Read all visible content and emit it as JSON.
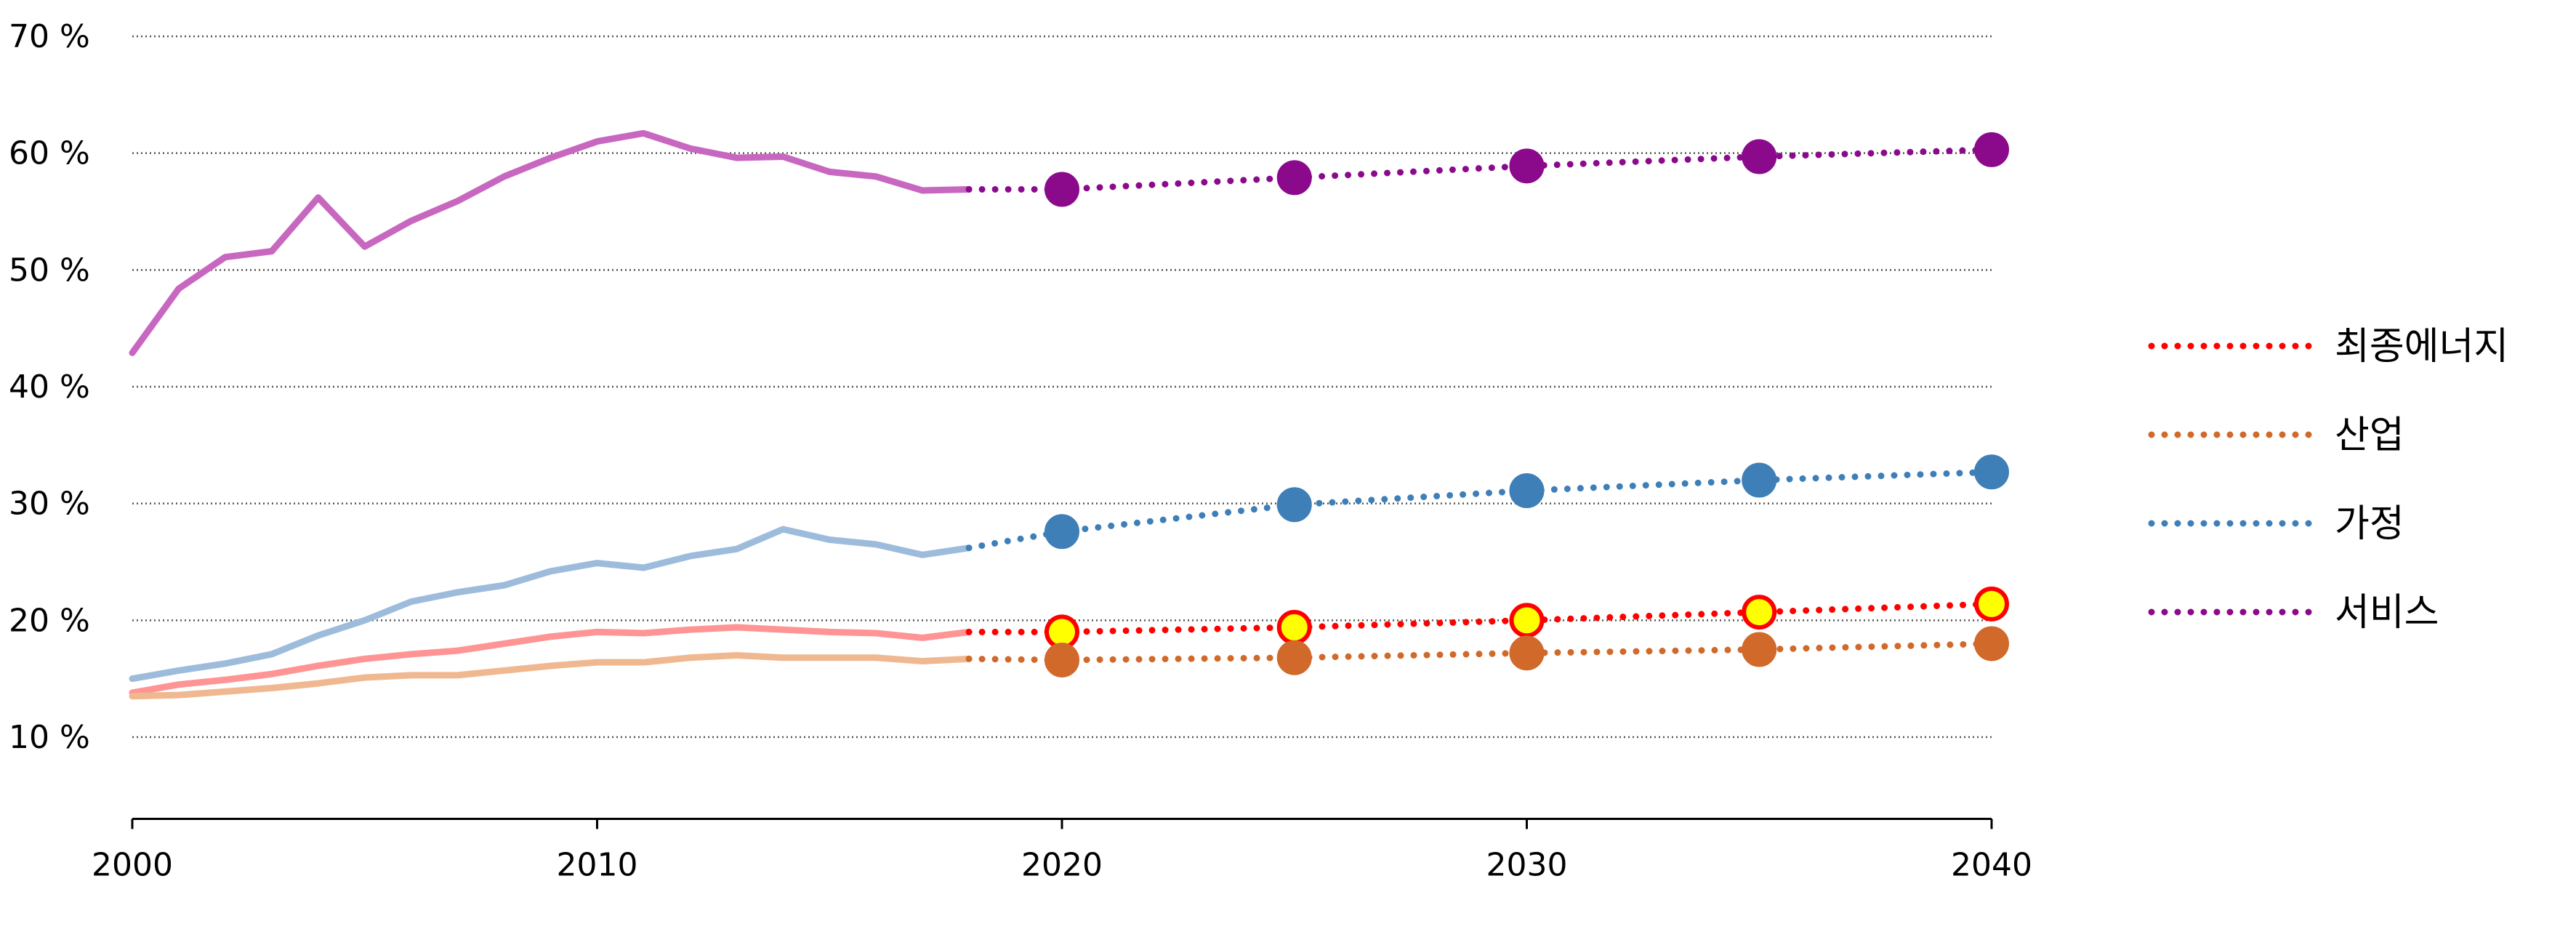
{
  "chart_data": {
    "type": "line",
    "x_ticks": [
      2000,
      2010,
      2020,
      2030,
      2040
    ],
    "y_ticks": [
      10,
      20,
      30,
      40,
      50,
      60,
      70
    ],
    "y_tick_labels": [
      "10 %",
      "20 %",
      "30 %",
      "40 %",
      "50 %",
      "60 %",
      "70 %"
    ],
    "xlim": [
      2000,
      2040
    ],
    "ylim": [
      3,
      70
    ],
    "grid": "horizontal dotted",
    "legend_placement": "right",
    "series": [
      {
        "name": "최종에너지",
        "color": "#ff0000",
        "history_color": "#ff9494",
        "marker_fill": "#ffff00",
        "marker_stroke": "#ff0000",
        "history_x": [
          2000,
          2001,
          2002,
          2003,
          2004,
          2005,
          2006,
          2007,
          2008,
          2009,
          2010,
          2011,
          2012,
          2013,
          2014,
          2015,
          2016,
          2017,
          2018
        ],
        "history_y": [
          13.8,
          14.5,
          14.9,
          15.4,
          16.1,
          16.7,
          17.1,
          17.4,
          18.0,
          18.6,
          19.0,
          18.9,
          19.2,
          19.4,
          19.2,
          19.0,
          18.9,
          18.5,
          19.0
        ],
        "projection_x": [
          2018,
          2020,
          2025,
          2030,
          2035,
          2040
        ],
        "projection_y": [
          19.0,
          19.0,
          19.4,
          20.0,
          20.7,
          21.4
        ],
        "marker_x": [
          2020,
          2025,
          2030,
          2035,
          2040
        ],
        "marker_y": [
          19.0,
          19.4,
          20.0,
          20.7,
          21.4
        ]
      },
      {
        "name": "산업",
        "color": "#d0692a",
        "history_color": "#f0b890",
        "marker_fill": "#d0692a",
        "marker_stroke": "#d0692a",
        "history_x": [
          2000,
          2001,
          2002,
          2003,
          2004,
          2005,
          2006,
          2007,
          2008,
          2009,
          2010,
          2011,
          2012,
          2013,
          2014,
          2015,
          2016,
          2017,
          2018
        ],
        "history_y": [
          13.5,
          13.6,
          13.9,
          14.2,
          14.6,
          15.1,
          15.3,
          15.3,
          15.7,
          16.1,
          16.4,
          16.4,
          16.8,
          17.0,
          16.8,
          16.8,
          16.8,
          16.5,
          16.7
        ],
        "projection_x": [
          2018,
          2020,
          2025,
          2030,
          2035,
          2040
        ],
        "projection_y": [
          16.7,
          16.6,
          16.8,
          17.2,
          17.5,
          18.0
        ],
        "marker_x": [
          2020,
          2025,
          2030,
          2035,
          2040
        ],
        "marker_y": [
          16.6,
          16.8,
          17.2,
          17.5,
          18.0
        ]
      },
      {
        "name": "가정",
        "color": "#3f7fb8",
        "history_color": "#9dbcdb",
        "marker_fill": "#3f7fb8",
        "marker_stroke": "#3f7fb8",
        "history_x": [
          2000,
          2001,
          2002,
          2003,
          2004,
          2005,
          2006,
          2007,
          2008,
          2009,
          2010,
          2011,
          2012,
          2013,
          2014,
          2015,
          2016,
          2017,
          2018
        ],
        "history_y": [
          15.0,
          15.7,
          16.3,
          17.1,
          18.7,
          20.0,
          21.6,
          22.4,
          23.0,
          24.2,
          24.9,
          24.5,
          25.5,
          26.1,
          27.8,
          26.9,
          26.5,
          25.6,
          26.2
        ],
        "projection_x": [
          2018,
          2020,
          2025,
          2030,
          2035,
          2040
        ],
        "projection_y": [
          26.2,
          27.6,
          29.9,
          31.1,
          32.0,
          32.7
        ],
        "marker_x": [
          2020,
          2025,
          2030,
          2035,
          2040
        ],
        "marker_y": [
          27.6,
          29.9,
          31.1,
          32.0,
          32.7
        ]
      },
      {
        "name": "서비스",
        "color": "#8b0a8b",
        "history_color": "#c867c0",
        "marker_fill": "#8b0a8b",
        "marker_stroke": "#8b0a8b",
        "history_x": [
          2000,
          2001,
          2002,
          2003,
          2004,
          2005,
          2006,
          2007,
          2008,
          2009,
          2010,
          2011,
          2012,
          2013,
          2014,
          2015,
          2016,
          2017,
          2018
        ],
        "history_y": [
          42.9,
          48.4,
          51.1,
          51.6,
          56.2,
          52.0,
          54.2,
          55.9,
          58.0,
          59.6,
          61.0,
          61.7,
          60.4,
          59.6,
          59.7,
          58.4,
          58.0,
          56.8,
          56.9
        ],
        "projection_x": [
          2018,
          2020,
          2025,
          2030,
          2035,
          2040
        ],
        "projection_y": [
          56.9,
          56.9,
          57.9,
          58.9,
          59.7,
          60.3
        ],
        "marker_x": [
          2020,
          2025,
          2030,
          2035,
          2040
        ],
        "marker_y": [
          56.9,
          57.9,
          58.9,
          59.7,
          60.3
        ]
      }
    ]
  }
}
